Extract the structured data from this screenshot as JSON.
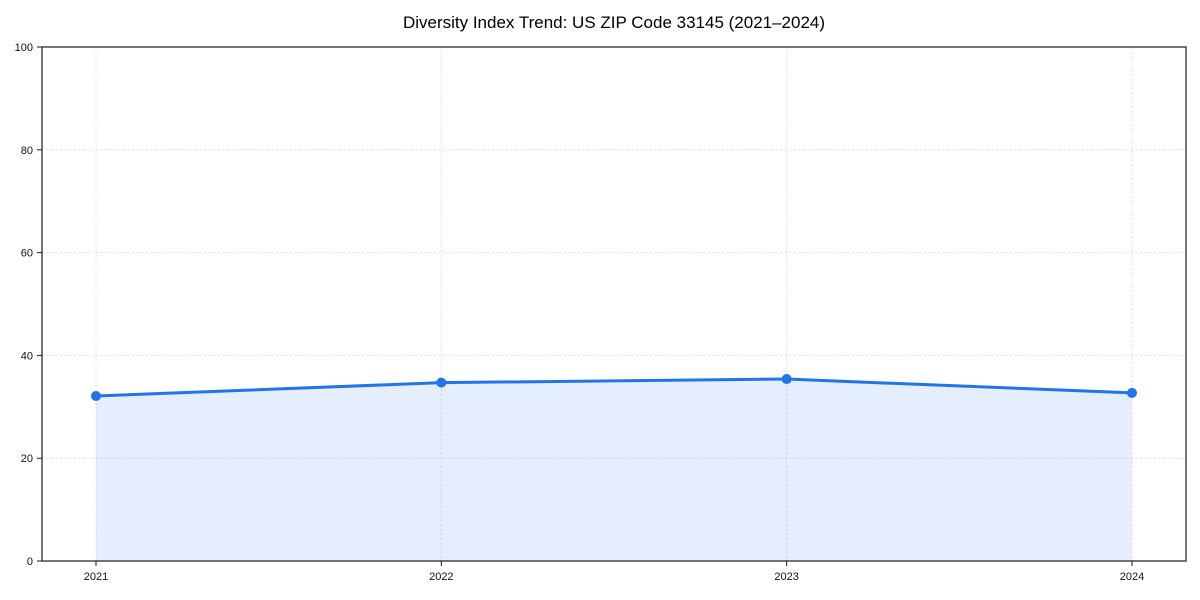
{
  "chart_data": {
    "type": "area",
    "title": "Diversity Index Trend: US ZIP Code 33145 (2021–2024)",
    "categories": [
      "2021",
      "2022",
      "2023",
      "2024"
    ],
    "series": [
      {
        "name": "Diversity Index",
        "values": [
          32.1,
          34.7,
          35.4,
          32.7
        ]
      }
    ],
    "xlabel": "",
    "ylabel": "",
    "ylim": [
      0,
      100
    ],
    "yticks": [
      0,
      20,
      40,
      60,
      80,
      100
    ],
    "grid": true,
    "grid_style": "dashed",
    "legend": "none",
    "colors": {
      "line": "#2274e8",
      "marker": "#2274e8",
      "fill": "#2274e8",
      "fill_opacity": 0.12,
      "gridline": "#e3e3e3",
      "axis_frame": "#1a1a1a",
      "tick_text": "#111111",
      "background": "#ffffff"
    }
  }
}
